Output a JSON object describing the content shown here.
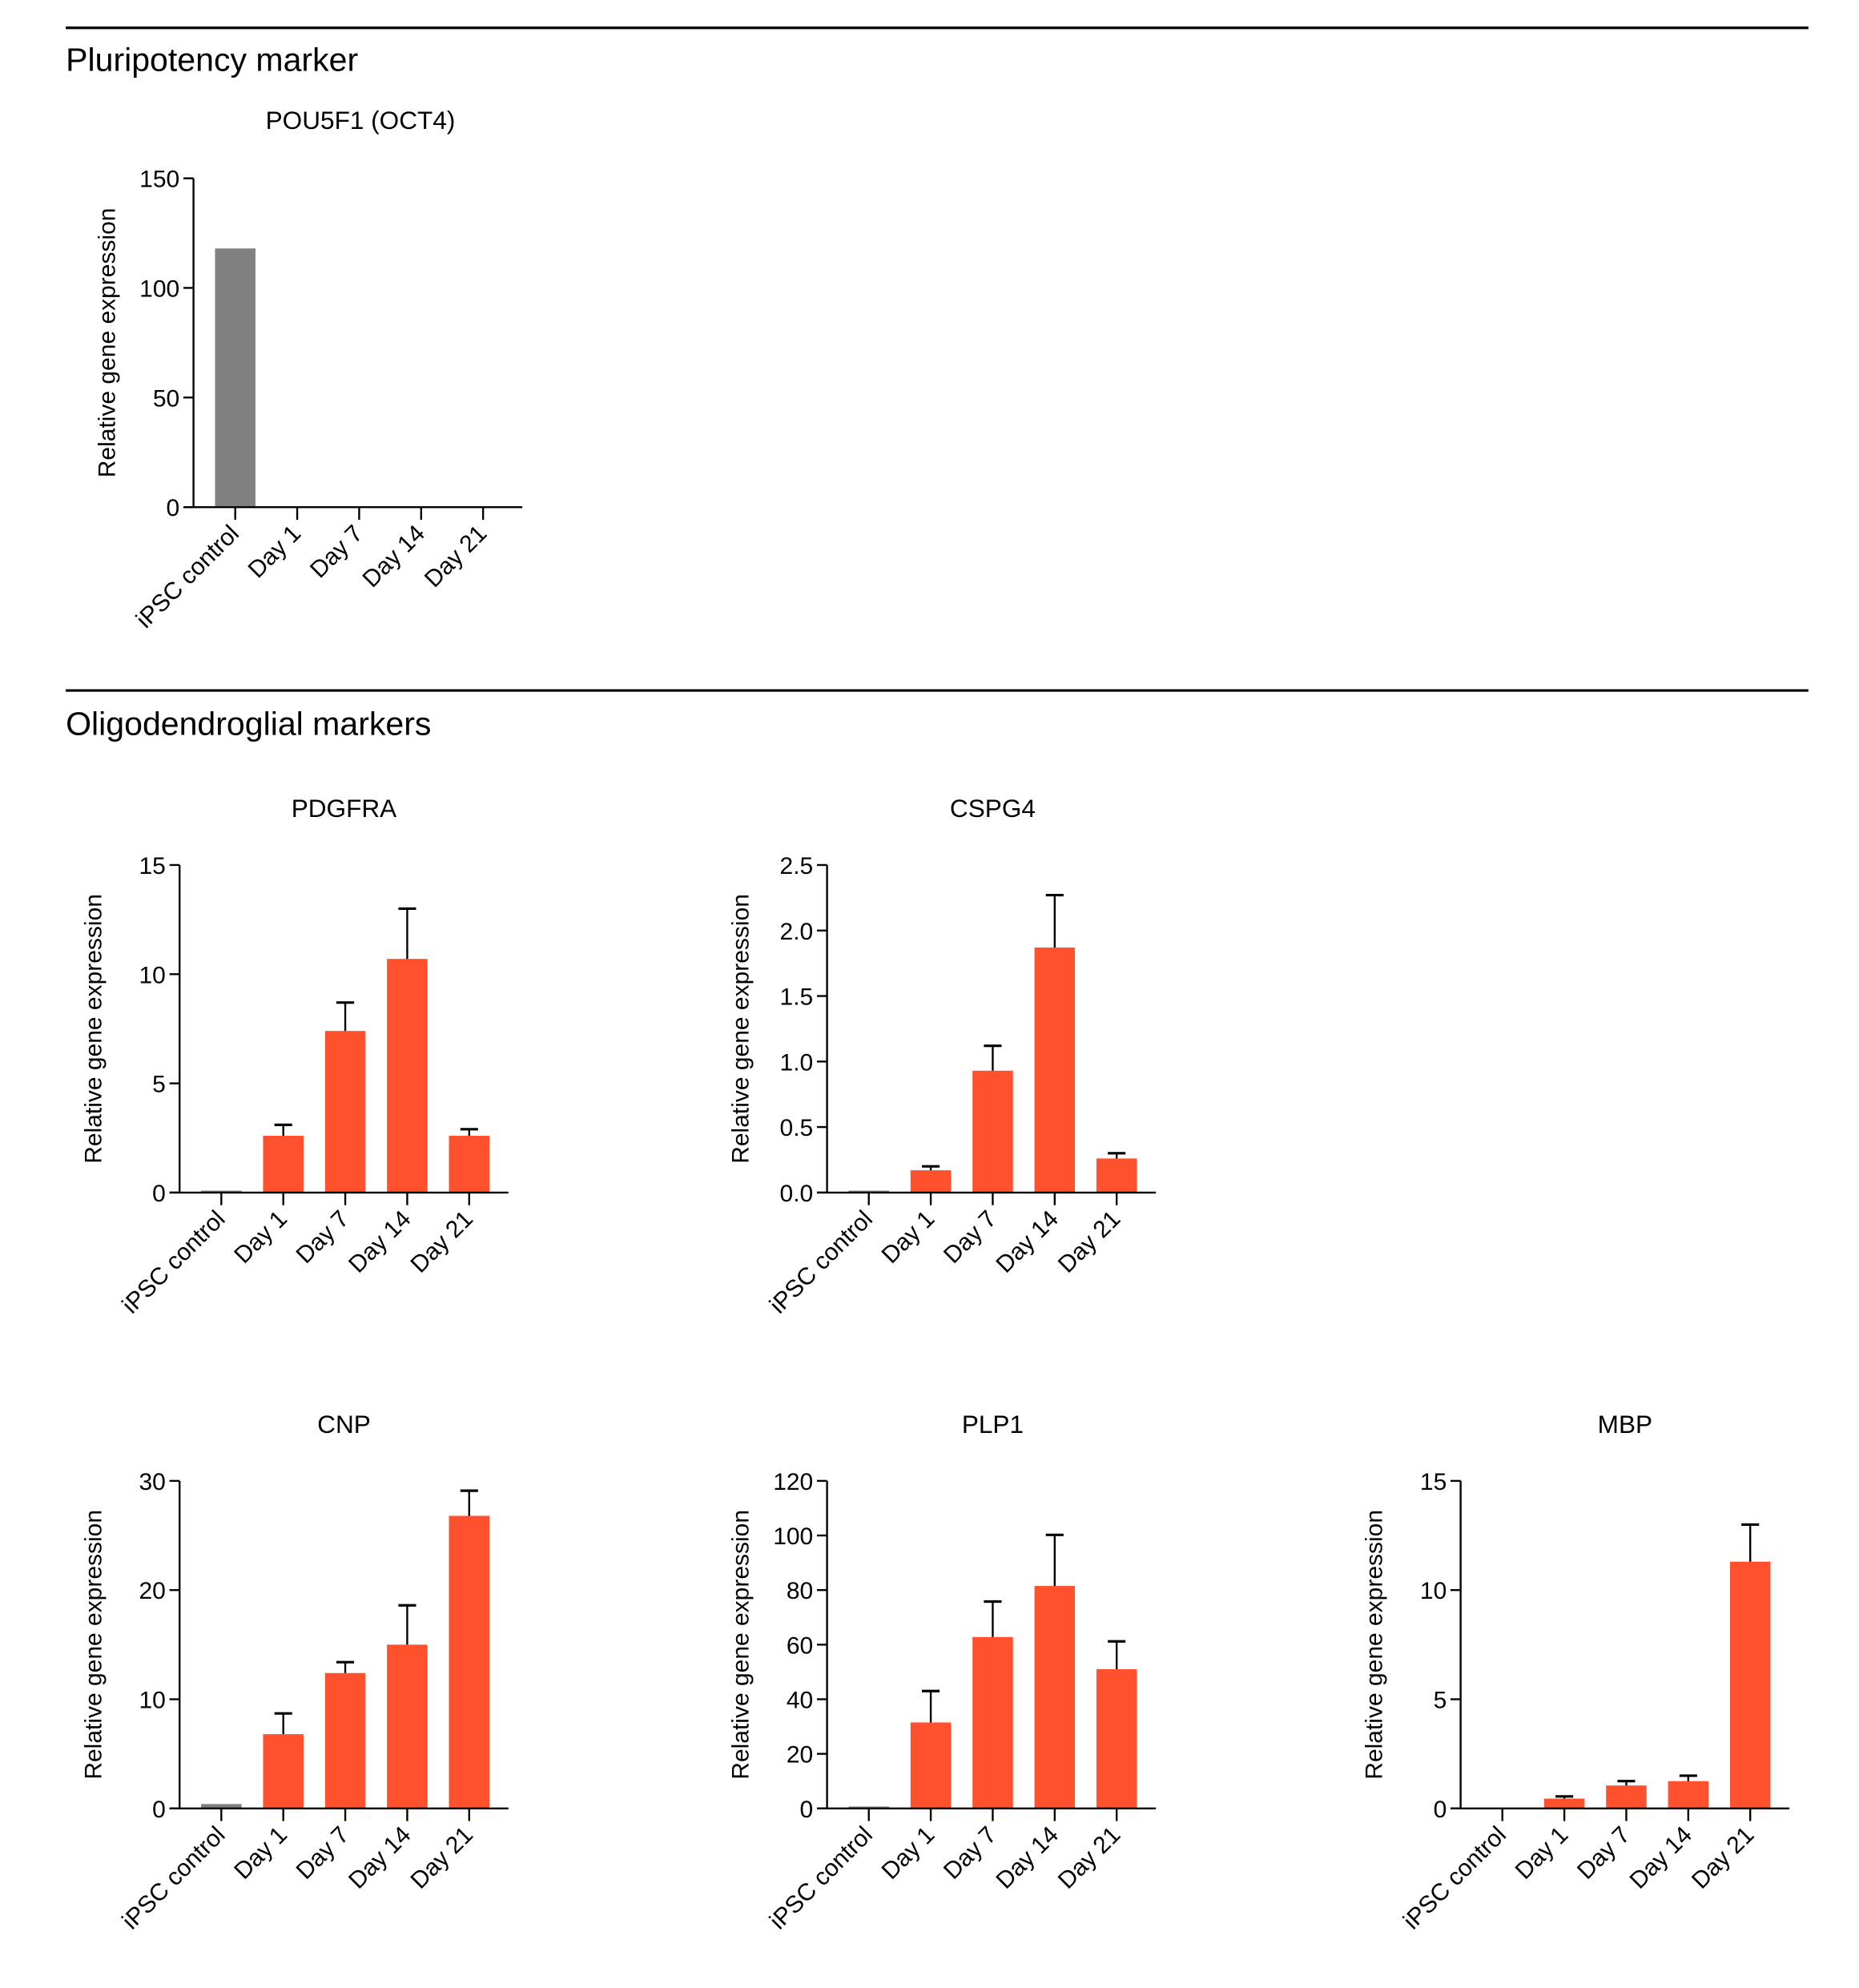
{
  "sections": [
    {
      "title": "Pluripotency marker"
    },
    {
      "title": "Oligodendroglial markers"
    }
  ],
  "colors": {
    "control": "#808080",
    "treated": "#ff512e",
    "axis": "#000000"
  },
  "chart_data": [
    {
      "type": "bar",
      "title": "POU5F1 (OCT4)",
      "ylabel": "Relative gene expression",
      "xlabel": "",
      "categories": [
        "iPSC control",
        "Day 1",
        "Day 7",
        "Day 14",
        "Day 21"
      ],
      "values": [
        118,
        0,
        0,
        0,
        0
      ],
      "error_upper": [
        null,
        null,
        null,
        null,
        null
      ],
      "ylim": [
        0,
        150
      ],
      "yticks": [
        "0",
        "50",
        "100",
        "150"
      ]
    },
    {
      "type": "bar",
      "title": "PDGFRA",
      "ylabel": "Relative gene expression",
      "xlabel": "",
      "categories": [
        "iPSC control",
        "Day 1",
        "Day 7",
        "Day 14",
        "Day 21"
      ],
      "values": [
        0.05,
        2.6,
        7.4,
        10.7,
        2.6
      ],
      "error_upper": [
        null,
        3.1,
        8.7,
        13.0,
        2.9
      ],
      "ylim": [
        0,
        15
      ],
      "yticks": [
        "0",
        "5",
        "10",
        "15"
      ]
    },
    {
      "type": "bar",
      "title": "CSPG4",
      "ylabel": "Relative gene expression",
      "xlabel": "",
      "categories": [
        "iPSC control",
        "Day 1",
        "Day 7",
        "Day 14",
        "Day 21"
      ],
      "values": [
        0.01,
        0.17,
        0.93,
        1.87,
        0.26
      ],
      "error_upper": [
        null,
        0.2,
        1.12,
        2.27,
        0.3
      ],
      "ylim": [
        0,
        2.5
      ],
      "yticks": [
        "0.0",
        "0.5",
        "1.0",
        "1.5",
        "2.0",
        "2.5"
      ]
    },
    {
      "type": "bar",
      "title": "CNP",
      "ylabel": "Relative gene expression",
      "xlabel": "",
      "categories": [
        "iPSC control",
        "Day 1",
        "Day 7",
        "Day 14",
        "Day 21"
      ],
      "values": [
        0.4,
        6.8,
        12.4,
        15.0,
        26.8
      ],
      "error_upper": [
        null,
        8.7,
        13.4,
        18.6,
        29.1
      ],
      "ylim": [
        0,
        30
      ],
      "yticks": [
        "0",
        "10",
        "20",
        "30"
      ]
    },
    {
      "type": "bar",
      "title": "PLP1",
      "ylabel": "Relative gene expression",
      "xlabel": "",
      "categories": [
        "iPSC control",
        "Day 1",
        "Day 7",
        "Day 14",
        "Day 21"
      ],
      "values": [
        0.3,
        31.5,
        62.8,
        81.5,
        51.0
      ],
      "error_upper": [
        null,
        43.0,
        75.8,
        100.2,
        61.2
      ],
      "ylim": [
        0,
        120
      ],
      "yticks": [
        "0",
        "20",
        "40",
        "60",
        "80",
        "100",
        "120"
      ]
    },
    {
      "type": "bar",
      "title": "MBP",
      "ylabel": "Relative gene expression",
      "xlabel": "",
      "categories": [
        "iPSC control",
        "Day 1",
        "Day 7",
        "Day 14",
        "Day 21"
      ],
      "values": [
        0,
        0.45,
        1.05,
        1.25,
        11.3
      ],
      "error_upper": [
        null,
        0.55,
        1.25,
        1.5,
        13.0
      ],
      "ylim": [
        0,
        15
      ],
      "yticks": [
        "0",
        "5",
        "10",
        "15"
      ]
    }
  ]
}
